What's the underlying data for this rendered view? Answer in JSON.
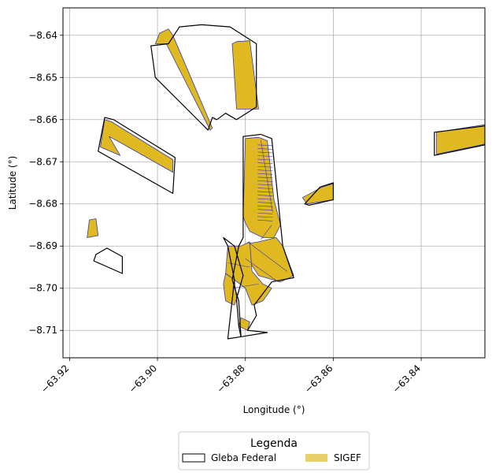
{
  "chart_data": {
    "type": "map",
    "xlabel": "Longitude (°)",
    "ylabel": "Latitude (°)",
    "xlim": [
      -63.9215,
      -63.8255
    ],
    "ylim": [
      -8.7165,
      -8.6335
    ],
    "x_ticks": [
      -63.92,
      -63.9,
      -63.88,
      -63.86,
      -63.84
    ],
    "x_tick_labels": [
      "−63.92",
      "−63.90",
      "−63.88",
      "−63.86",
      "−63.84"
    ],
    "y_ticks": [
      -8.64,
      -8.65,
      -8.66,
      -8.67,
      -8.68,
      -8.69,
      -8.7,
      -8.71
    ],
    "y_tick_labels": [
      "−8.64",
      "−8.65",
      "−8.66",
      "−8.67",
      "−8.68",
      "−8.69",
      "−8.70",
      "−8.71"
    ],
    "grid": true,
    "legend": {
      "title": "Legenda",
      "placement": "bottom-center",
      "entries": [
        {
          "label": "Gleba Federal",
          "style": "outline",
          "color": "#000000"
        },
        {
          "label": "SIGEF",
          "style": "fill",
          "color": "#e8d06a"
        }
      ]
    },
    "colors": {
      "sigef_fill": "#e0b920",
      "sigef_edge": "#3a3aa8",
      "gleba_edge": "#000000",
      "grid": "#b0b0b0"
    },
    "layers": {
      "gleba": [
        [
          [
            -63.8975,
            -8.642
          ],
          [
            -63.895,
            -8.638
          ],
          [
            -63.89,
            -8.6375
          ],
          [
            -63.8835,
            -8.638
          ],
          [
            -63.8775,
            -8.642
          ],
          [
            -63.8775,
            -8.657
          ],
          [
            -63.882,
            -8.66
          ],
          [
            -63.8845,
            -8.6585
          ],
          [
            -63.8865,
            -8.66
          ],
          [
            -63.8875,
            -8.6595
          ],
          [
            -63.8885,
            -8.6625
          ],
          [
            -63.9005,
            -8.65
          ],
          [
            -63.9015,
            -8.6425
          ]
        ],
        [
          [
            -63.912,
            -8.6595
          ],
          [
            -63.91,
            -8.66
          ],
          [
            -63.896,
            -8.669
          ],
          [
            -63.8965,
            -8.6775
          ],
          [
            -63.9135,
            -8.6675
          ]
        ],
        [
          [
            -63.914,
            -8.692
          ],
          [
            -63.9115,
            -8.6905
          ],
          [
            -63.908,
            -8.6925
          ],
          [
            -63.908,
            -8.6965
          ],
          [
            -63.9145,
            -8.6935
          ]
        ],
        [
          [
            -63.8805,
            -8.664
          ],
          [
            -63.8765,
            -8.6635
          ],
          [
            -63.874,
            -8.6645
          ],
          [
            -63.8715,
            -8.69
          ],
          [
            -63.869,
            -8.6975
          ],
          [
            -63.874,
            -8.6985
          ],
          [
            -63.878,
            -8.704
          ],
          [
            -63.8775,
            -8.7065
          ],
          [
            -63.8795,
            -8.71
          ],
          [
            -63.875,
            -8.7105
          ],
          [
            -63.881,
            -8.7115
          ],
          [
            -63.8815,
            -8.709
          ],
          [
            -63.882,
            -8.7025
          ],
          [
            -63.8805,
            -8.697
          ],
          [
            -63.8825,
            -8.69
          ],
          [
            -63.885,
            -8.688
          ],
          [
            -63.884,
            -8.69
          ],
          [
            -63.8825,
            -8.698
          ],
          [
            -63.884,
            -8.712
          ],
          [
            -63.881,
            -8.7115
          ],
          [
            -63.8815,
            -8.703
          ],
          [
            -63.883,
            -8.698
          ],
          [
            -63.8815,
            -8.69
          ],
          [
            -63.8805,
            -8.688
          ]
        ],
        [
          [
            -63.8665,
            -8.68
          ],
          [
            -63.863,
            -8.676
          ],
          [
            -63.86,
            -8.675
          ],
          [
            -63.86,
            -8.679
          ],
          [
            -63.8655,
            -8.6803
          ]
        ],
        [
          [
            -63.837,
            -8.663
          ],
          [
            -63.8255,
            -8.6615
          ],
          [
            -63.8255,
            -8.666
          ],
          [
            -63.837,
            -8.6685
          ]
        ]
      ],
      "sigef": [
        [
          [
            -63.8995,
            -8.6395
          ],
          [
            -63.8975,
            -8.6385
          ],
          [
            -63.8965,
            -8.64
          ],
          [
            -63.8875,
            -8.662
          ],
          [
            -63.888,
            -8.6625
          ],
          [
            -63.898,
            -8.642
          ],
          [
            -63.9005,
            -8.642
          ]
        ],
        [
          [
            -63.882,
            -8.6415
          ],
          [
            -63.879,
            -8.6413
          ],
          [
            -63.877,
            -8.6575
          ],
          [
            -63.882,
            -8.6575
          ],
          [
            -63.883,
            -8.642
          ]
        ],
        [
          [
            -63.912,
            -8.66
          ],
          [
            -63.9105,
            -8.6605
          ],
          [
            -63.8965,
            -8.6695
          ],
          [
            -63.8965,
            -8.6725
          ],
          [
            -63.9075,
            -8.666
          ],
          [
            -63.911,
            -8.664
          ],
          [
            -63.9085,
            -8.6685
          ],
          [
            -63.913,
            -8.6665
          ]
        ],
        [
          [
            -63.9155,
            -8.6838
          ],
          [
            -63.914,
            -8.6835
          ],
          [
            -63.9135,
            -8.6875
          ],
          [
            -63.916,
            -8.688
          ]
        ],
        [
          [
            -63.88,
            -8.6645
          ],
          [
            -63.877,
            -8.6642
          ],
          [
            -63.875,
            -8.665
          ],
          [
            -63.8735,
            -8.679
          ],
          [
            -63.872,
            -8.685
          ],
          [
            -63.8735,
            -8.688
          ],
          [
            -63.876,
            -8.688
          ],
          [
            -63.879,
            -8.6865
          ],
          [
            -63.88,
            -8.6845
          ],
          [
            -63.8805,
            -8.683
          ]
        ],
        [
          [
            -63.877,
            -8.689
          ],
          [
            -63.873,
            -8.688
          ],
          [
            -63.8715,
            -8.69
          ],
          [
            -63.869,
            -8.697
          ],
          [
            -63.872,
            -8.6985
          ],
          [
            -63.877,
            -8.697
          ],
          [
            -63.8795,
            -8.693
          ],
          [
            -63.88,
            -8.6895
          ]
        ],
        [
          [
            -63.881,
            -8.69
          ],
          [
            -63.879,
            -8.689
          ],
          [
            -63.8785,
            -8.696
          ],
          [
            -63.876,
            -8.699
          ],
          [
            -63.874,
            -8.7
          ],
          [
            -63.876,
            -8.703
          ],
          [
            -63.8785,
            -8.704
          ],
          [
            -63.88,
            -8.7
          ],
          [
            -63.8825,
            -8.698
          ],
          [
            -63.8845,
            -8.6965
          ],
          [
            -63.884,
            -8.69
          ]
        ],
        [
          [
            -63.8845,
            -8.6965
          ],
          [
            -63.8825,
            -8.698
          ],
          [
            -63.882,
            -8.7025
          ],
          [
            -63.8825,
            -8.704
          ],
          [
            -63.8845,
            -8.703
          ],
          [
            -63.885,
            -8.699
          ]
        ],
        [
          [
            -63.881,
            -8.707
          ],
          [
            -63.879,
            -8.708
          ],
          [
            -63.8795,
            -8.71
          ],
          [
            -63.8815,
            -8.709
          ]
        ],
        [
          [
            -63.867,
            -8.6785
          ],
          [
            -63.8625,
            -8.676
          ],
          [
            -63.86,
            -8.6752
          ],
          [
            -63.86,
            -8.679
          ],
          [
            -63.866,
            -8.68
          ]
        ],
        [
          [
            -63.8365,
            -8.663
          ],
          [
            -63.8255,
            -8.6612
          ],
          [
            -63.8255,
            -8.6658
          ],
          [
            -63.8365,
            -8.6682
          ]
        ]
      ]
    }
  }
}
